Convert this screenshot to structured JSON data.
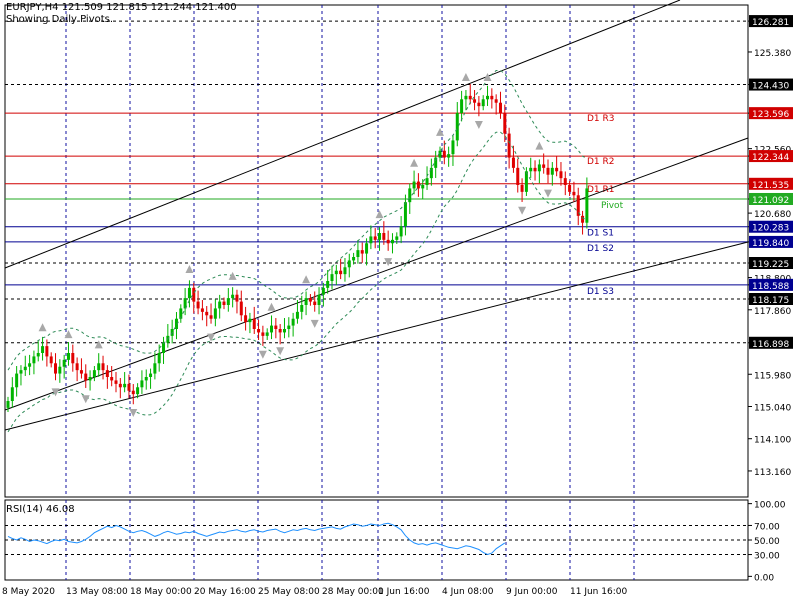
{
  "header": {
    "symbol_line": "EURJPY,H4  121.509 121.815 121.244 121.400",
    "subtitle": "Showing Daily Pivots."
  },
  "rsi_header": "RSI(14) 46.08",
  "colors": {
    "bullish": "#00b400",
    "bearish": "#e00000",
    "grid": "#1010a0",
    "resistance": "#d00000",
    "pivot": "#22aa22",
    "support": "#000090",
    "band": "#2e8b57",
    "rsi_line": "#1e90ff"
  },
  "chart_data": [
    {
      "type": "candlestick",
      "symbol": "EURJPY",
      "timeframe": "H4",
      "ylim": [
        112.4,
        126.75
      ],
      "y_ticks": [
        "126.281",
        "125.380",
        "124.430",
        "123.596",
        "122.560",
        "122.344",
        "121.535",
        "121.092",
        "120.680",
        "120.283",
        "119.840",
        "119.225",
        "118.800",
        "118.588",
        "118.175",
        "117.860",
        "116.898",
        "115.980",
        "115.040",
        "114.100",
        "113.160"
      ],
      "x_tick_labels": [
        "8 May 2020",
        "13 May 08:00",
        "18 May 00:00",
        "20 May 16:00",
        "25 May 08:00",
        "28 May 00:00",
        "1 Jun 16:00",
        "4 Jun 08:00",
        "9 Jun 00:00",
        "11 Jun 16:00"
      ],
      "pivot_levels": [
        {
          "label": "D1 R3",
          "value": 123.596,
          "kind": "resistance"
        },
        {
          "label": "D1 R2",
          "value": 122.344,
          "kind": "resistance"
        },
        {
          "label": "D1 R1",
          "value": 121.535,
          "kind": "resistance"
        },
        {
          "label": "Pivot",
          "value": 121.092,
          "kind": "pivot"
        },
        {
          "label": "D1 S1",
          "value": 120.283,
          "kind": "support"
        },
        {
          "label": "D1 S2",
          "value": 119.84,
          "kind": "support"
        },
        {
          "label": "D1 S3",
          "value": 118.588,
          "kind": "support"
        }
      ],
      "dashed_levels": [
        126.281,
        124.43,
        119.225,
        118.175,
        116.898
      ],
      "closes": [
        115.2,
        115.6,
        116.0,
        116.1,
        116.2,
        116.3,
        116.5,
        116.6,
        116.8,
        116.5,
        116.3,
        116.0,
        116.2,
        116.4,
        116.6,
        116.3,
        116.1,
        116.0,
        115.8,
        115.9,
        116.1,
        116.3,
        116.1,
        115.9,
        115.8,
        115.7,
        115.6,
        115.7,
        115.5,
        115.4,
        115.6,
        115.8,
        115.9,
        116.0,
        116.3,
        116.6,
        116.9,
        117.1,
        117.3,
        117.6,
        117.9,
        118.2,
        118.5,
        118.1,
        117.9,
        117.8,
        117.7,
        117.6,
        117.9,
        118.1,
        118.0,
        118.2,
        118.3,
        118.1,
        117.7,
        117.5,
        117.6,
        117.3,
        117.2,
        117.1,
        117.2,
        117.4,
        117.3,
        117.2,
        117.3,
        117.4,
        117.6,
        117.8,
        118.0,
        118.2,
        118.1,
        118.0,
        118.3,
        118.5,
        118.7,
        118.9,
        119.0,
        118.9,
        119.1,
        119.3,
        119.4,
        119.6,
        119.5,
        119.8,
        120.0,
        119.9,
        120.1,
        119.9,
        119.8,
        119.9,
        120.0,
        120.3,
        121.0,
        121.4,
        121.6,
        121.4,
        121.5,
        121.7,
        122.0,
        122.3,
        122.5,
        122.3,
        122.4,
        122.8,
        123.6,
        124.0,
        124.1,
        124.0,
        123.9,
        123.8,
        124.0,
        124.1,
        124.0,
        123.9,
        123.6,
        123.0,
        122.3,
        122.0,
        121.5,
        121.3,
        121.9,
        122.0,
        121.9,
        122.1,
        122.0,
        121.8,
        122.0,
        121.9,
        121.7,
        121.5,
        121.3,
        121.2,
        120.6,
        120.4,
        121.4
      ],
      "rsi": {
        "period": 14,
        "value": 46.08,
        "ylim": [
          -5,
          105
        ],
        "levels": [
          70,
          50,
          30
        ],
        "tick_labels": [
          "100.00",
          "70.00",
          "50.00",
          "30.00",
          "0.00"
        ],
        "values": [
          55,
          52,
          50,
          53,
          51,
          48,
          50,
          49,
          47,
          45,
          48,
          50,
          49,
          51,
          48,
          47,
          46,
          48,
          51,
          55,
          60,
          63,
          66,
          69,
          67,
          70,
          68,
          65,
          62,
          60,
          62,
          63,
          61,
          58,
          55,
          57,
          60,
          62,
          60,
          58,
          59,
          61,
          60,
          62,
          59,
          57,
          55,
          57,
          59,
          61,
          60,
          62,
          63,
          64,
          62,
          61,
          63,
          64,
          62,
          61,
          63,
          64,
          65,
          62,
          60,
          62,
          64,
          63,
          65,
          66,
          64,
          63,
          65,
          66,
          67,
          68,
          66,
          65,
          68,
          70,
          72,
          71,
          69,
          70,
          72,
          71,
          70,
          72,
          73,
          71,
          68,
          64,
          56,
          50,
          46,
          44,
          45,
          43,
          45,
          46,
          44,
          42,
          40,
          39,
          38,
          40,
          42,
          41,
          39,
          37,
          33,
          30,
          32,
          38,
          42,
          46
        ]
      }
    }
  ]
}
